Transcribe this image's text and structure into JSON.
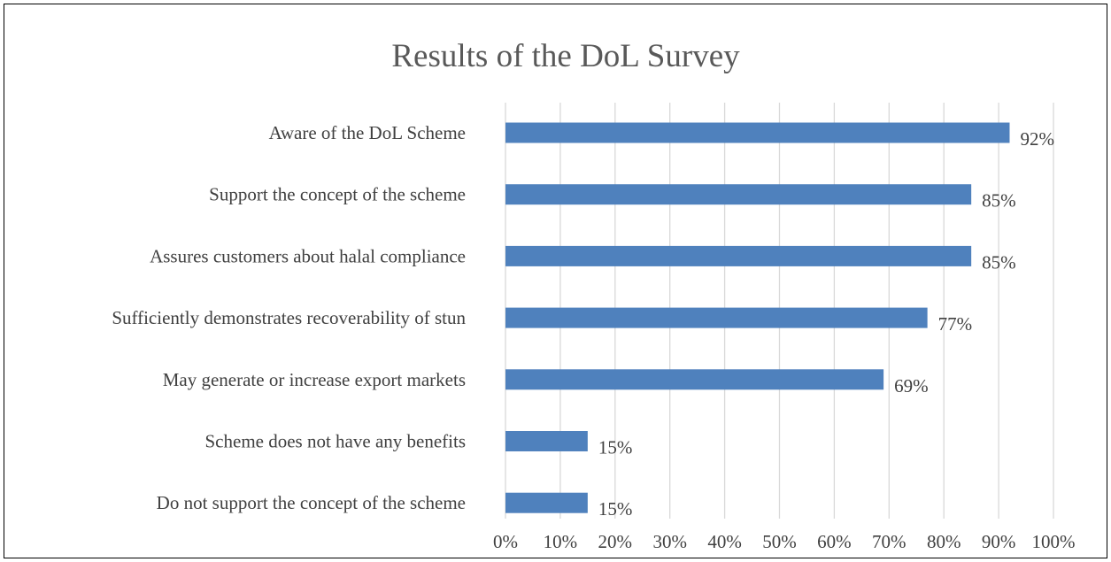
{
  "chart_data": {
    "type": "bar",
    "orientation": "horizontal",
    "title": "Results of the DoL Survey",
    "xlabel": "",
    "ylabel": "",
    "categories": [
      "Aware of the DoL Scheme",
      "Support the concept of the scheme",
      "Assures customers about halal compliance",
      "Sufficiently demonstrates recoverability of stun",
      "May generate or increase export markets",
      "Scheme does not have any benefits",
      "Do not support the concept of the scheme"
    ],
    "values": [
      92,
      85,
      85,
      77,
      69,
      15,
      15
    ],
    "value_labels": [
      "92%",
      "85%",
      "85%",
      "77%",
      "69%",
      "15%",
      "15%"
    ],
    "xlim": [
      0,
      100
    ],
    "xticks": [
      0,
      10,
      20,
      30,
      40,
      50,
      60,
      70,
      80,
      90,
      100
    ],
    "xtick_labels": [
      "0%",
      "10%",
      "20%",
      "30%",
      "40%",
      "50%",
      "60%",
      "70%",
      "80%",
      "90%",
      "100%"
    ],
    "grid": true,
    "legend": "none",
    "bar_color": "#4f81bd"
  }
}
